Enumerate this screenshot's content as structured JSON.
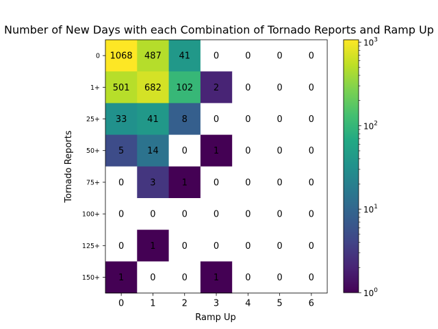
{
  "chart_data": {
    "type": "heatmap",
    "title": "Number of New Days with each Combination of Tornado Reports and Ramp Up",
    "xlabel": "Ramp Up",
    "ylabel": "Tornado Reports",
    "x_categories": [
      "0",
      "1",
      "2",
      "3",
      "4",
      "5",
      "6"
    ],
    "y_categories": [
      "0",
      "1+",
      "25+",
      "50+",
      "75+",
      "100+",
      "125+",
      "150+"
    ],
    "values": [
      [
        1068,
        487,
        41,
        0,
        0,
        0,
        0
      ],
      [
        501,
        682,
        102,
        2,
        0,
        0,
        0
      ],
      [
        33,
        41,
        8,
        0,
        0,
        0,
        0
      ],
      [
        5,
        14,
        0,
        1,
        0,
        0,
        0
      ],
      [
        0,
        3,
        1,
        0,
        0,
        0,
        0
      ],
      [
        0,
        0,
        0,
        0,
        0,
        0,
        0
      ],
      [
        0,
        1,
        0,
        0,
        0,
        0,
        0
      ],
      [
        1,
        0,
        0,
        1,
        0,
        0,
        0
      ]
    ],
    "color_scale": "log",
    "colormap": "viridis",
    "vmin": 1,
    "vmax": 1068,
    "zero_color": "#ffffff",
    "colorbar": {
      "ticks": [
        {
          "value": 1,
          "label": "10",
          "exp": "0"
        },
        {
          "value": 10,
          "label": "10",
          "exp": "1"
        },
        {
          "value": 100,
          "label": "10",
          "exp": "2"
        },
        {
          "value": 1000,
          "label": "10",
          "exp": "3"
        }
      ]
    }
  }
}
